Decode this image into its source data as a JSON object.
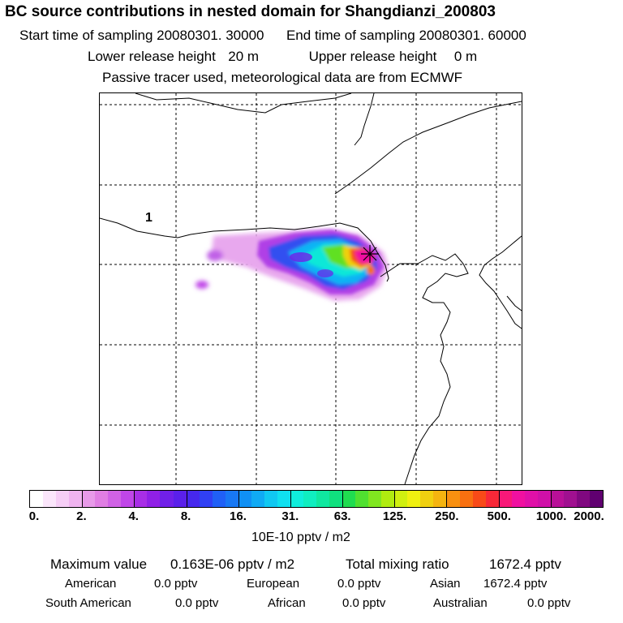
{
  "header": {
    "title": "BC  source contributions in nested domain for Shangdianzi_200803",
    "start_label": "Start time of sampling",
    "start_value": "20080301. 30000",
    "end_label": "End time of sampling",
    "end_value": "20080301. 60000",
    "lower_label": "Lower release height",
    "lower_value": "20 m",
    "upper_label": "Upper release height",
    "upper_value": "0 m",
    "tracer_note": "Passive tracer used, meteorological data are from ECMWF"
  },
  "map": {
    "region_label": "1",
    "receptor_marker": "asterisk"
  },
  "colorbar": {
    "ticks": [
      "0.",
      "2.",
      "4.",
      "8.",
      "16.",
      "31.",
      "63.",
      "125.",
      "250.",
      "500.",
      "1000.",
      "2000."
    ],
    "units": "10E-10 pptv / m2",
    "colors": [
      "#ffffff",
      "#fbe6fb",
      "#f6cef6",
      "#f0b4f0",
      "#e89ae9",
      "#e07ee3",
      "#d062e5",
      "#c046e8",
      "#a82ee6",
      "#9020e6",
      "#7020e8",
      "#5a20ea",
      "#4628ee",
      "#3040f4",
      "#2060f6",
      "#1878f4",
      "#1090f4",
      "#10aaf4",
      "#10c8f2",
      "#10e0f0",
      "#10eedc",
      "#10eec0",
      "#10e8a0",
      "#10e07e",
      "#20dc50",
      "#50e030",
      "#80e620",
      "#b0ec10",
      "#d0f010",
      "#f0f010",
      "#f0d010",
      "#f4b410",
      "#f89010",
      "#f87010",
      "#f84a18",
      "#f82838",
      "#f81878",
      "#f010a0",
      "#e010a8",
      "#d010a8",
      "#b81098",
      "#a01090",
      "#800880",
      "#600070"
    ]
  },
  "stats": {
    "max_label": "Maximum value",
    "max_value": "0.163E-06 pptv / m2",
    "total_label": "Total mixing ratio",
    "total_value": "1672.4 pptv",
    "regions": [
      {
        "name": "American",
        "value": "0.0 pptv"
      },
      {
        "name": "European",
        "value": "0.0 pptv"
      },
      {
        "name": "Asian",
        "value": "1672.4 pptv"
      },
      {
        "name": "South American",
        "value": "0.0 pptv"
      },
      {
        "name": "African",
        "value": "0.0 pptv"
      },
      {
        "name": "Australian",
        "value": "0.0 pptv"
      }
    ]
  }
}
